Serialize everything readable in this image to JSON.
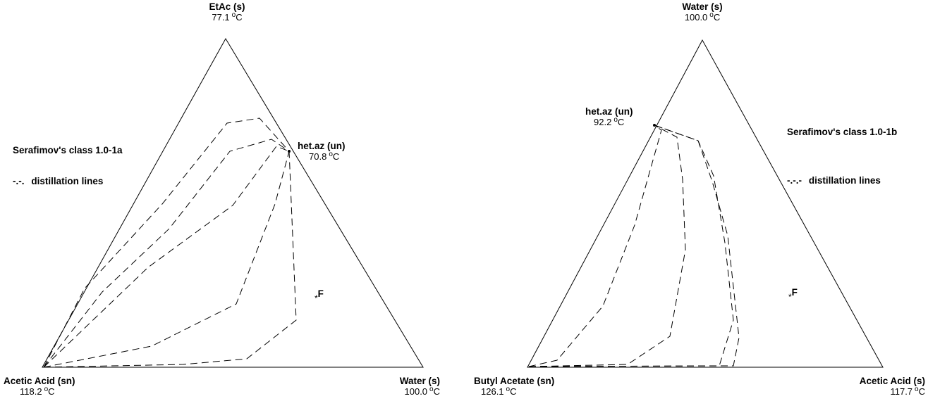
{
  "diagrams": [
    {
      "top_vertex": {
        "name": "EtAc (s)",
        "temp": "77.1",
        "unit": "C"
      },
      "left_vertex": {
        "name": "Acetic Acid (sn)",
        "temp": "118.2",
        "unit": "C"
      },
      "right_vertex": {
        "name": "Water (s)",
        "temp": "100.0",
        "unit": "C"
      },
      "azeotrope": {
        "name": "het.az (un)",
        "temp": "70.8",
        "unit": "C"
      },
      "class_label": "Serafimov's class 1.0-1a",
      "legend_symbol": "-.-.",
      "legend_text": "distillation lines",
      "feed_label": "F",
      "feed_marker": "*"
    },
    {
      "top_vertex": {
        "name": "Water (s)",
        "temp": "100.0",
        "unit": "C"
      },
      "left_vertex": {
        "name": "Butyl Acetate (sn)",
        "temp": "126.1",
        "unit": "C"
      },
      "right_vertex": {
        "name": "Acetic Acid (s)",
        "temp": "117.7",
        "unit": "C"
      },
      "azeotrope": {
        "name": "het.az (un)",
        "temp": "92.2",
        "unit": "C"
      },
      "class_label": "Serafimov's class 1.0-1b",
      "legend_symbol": "-.-.-",
      "legend_text": "distillation lines",
      "feed_label": "F",
      "feed_marker": "*"
    }
  ],
  "degree_symbol": "o"
}
